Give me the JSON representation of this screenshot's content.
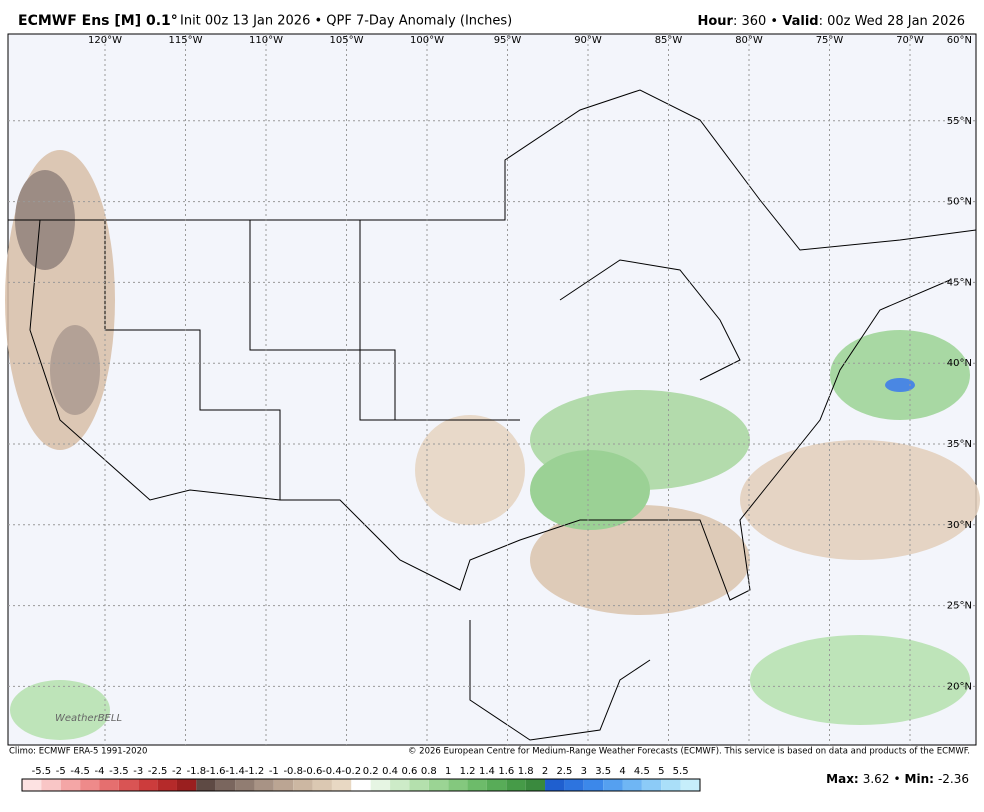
{
  "header": {
    "title": "ECMWF Ens [M] 0.1°",
    "subtitle": "Init 00z 13 Jan 2026 • QPF 7-Day Anomaly (Inches)",
    "right_parts": [
      "Hour",
      ": 360 • ",
      "Valid",
      ": 00z Wed 28 Jan 2026"
    ]
  },
  "map": {
    "lon_labels": [
      "120°W",
      "115°W",
      "110°W",
      "105°W",
      "100°W",
      "95°W",
      "90°W",
      "85°W",
      "80°W",
      "75°W",
      "70°W"
    ],
    "lat_labels": [
      "60°N",
      "55°N",
      "50°N",
      "45°N",
      "40°N",
      "35°N",
      "30°N",
      "25°N",
      "20°N"
    ],
    "logo": "WeatherBELL"
  },
  "footer": {
    "climo": "Climo: ECMWF ERA-5 1991-2020",
    "copyright": "© 2026 European Centre for Medium-Range Weather Forecasts (ECMWF). This service is based on data and products of the ECMWF."
  },
  "colorbar": {
    "labels": [
      -5.5,
      -5,
      -4.5,
      -4,
      -3.5,
      -3,
      -2.5,
      -2,
      -1.8,
      -1.6,
      -1.4,
      -1.2,
      -1,
      -0.8,
      -0.6,
      -0.4,
      -0.2,
      0.2,
      0.4,
      0.6,
      0.8,
      1,
      1.2,
      1.4,
      1.6,
      1.8,
      2,
      2.5,
      3,
      3.5,
      4,
      4.5,
      5,
      5.5
    ],
    "colors": [
      "#fde2e2",
      "#f9c6c6",
      "#f4a6a6",
      "#ee8a8a",
      "#e56f6f",
      "#d95454",
      "#cc3c3c",
      "#b52a2a",
      "#9a1f1f",
      "#5e4a44",
      "#7a665e",
      "#917d72",
      "#a89385",
      "#bba593",
      "#ccb7a2",
      "#dbc8b2",
      "#e8d8c3",
      "#ffffff",
      "#e6f5e3",
      "#cdebc8",
      "#b4e0ad",
      "#9bd494",
      "#84c87e",
      "#6dbb6a",
      "#58ac58",
      "#469b48",
      "#3a8a3e",
      "#1f5fcf",
      "#2d74df",
      "#3c88ea",
      "#55a0f0",
      "#6fb6f4",
      "#8ccbf7",
      "#aadff9",
      "#c6eefb"
    ]
  },
  "stats": {
    "max_label": "Max:",
    "max": 3.62,
    "separator": "•",
    "min_label": "Min:",
    "min": -2.36
  }
}
